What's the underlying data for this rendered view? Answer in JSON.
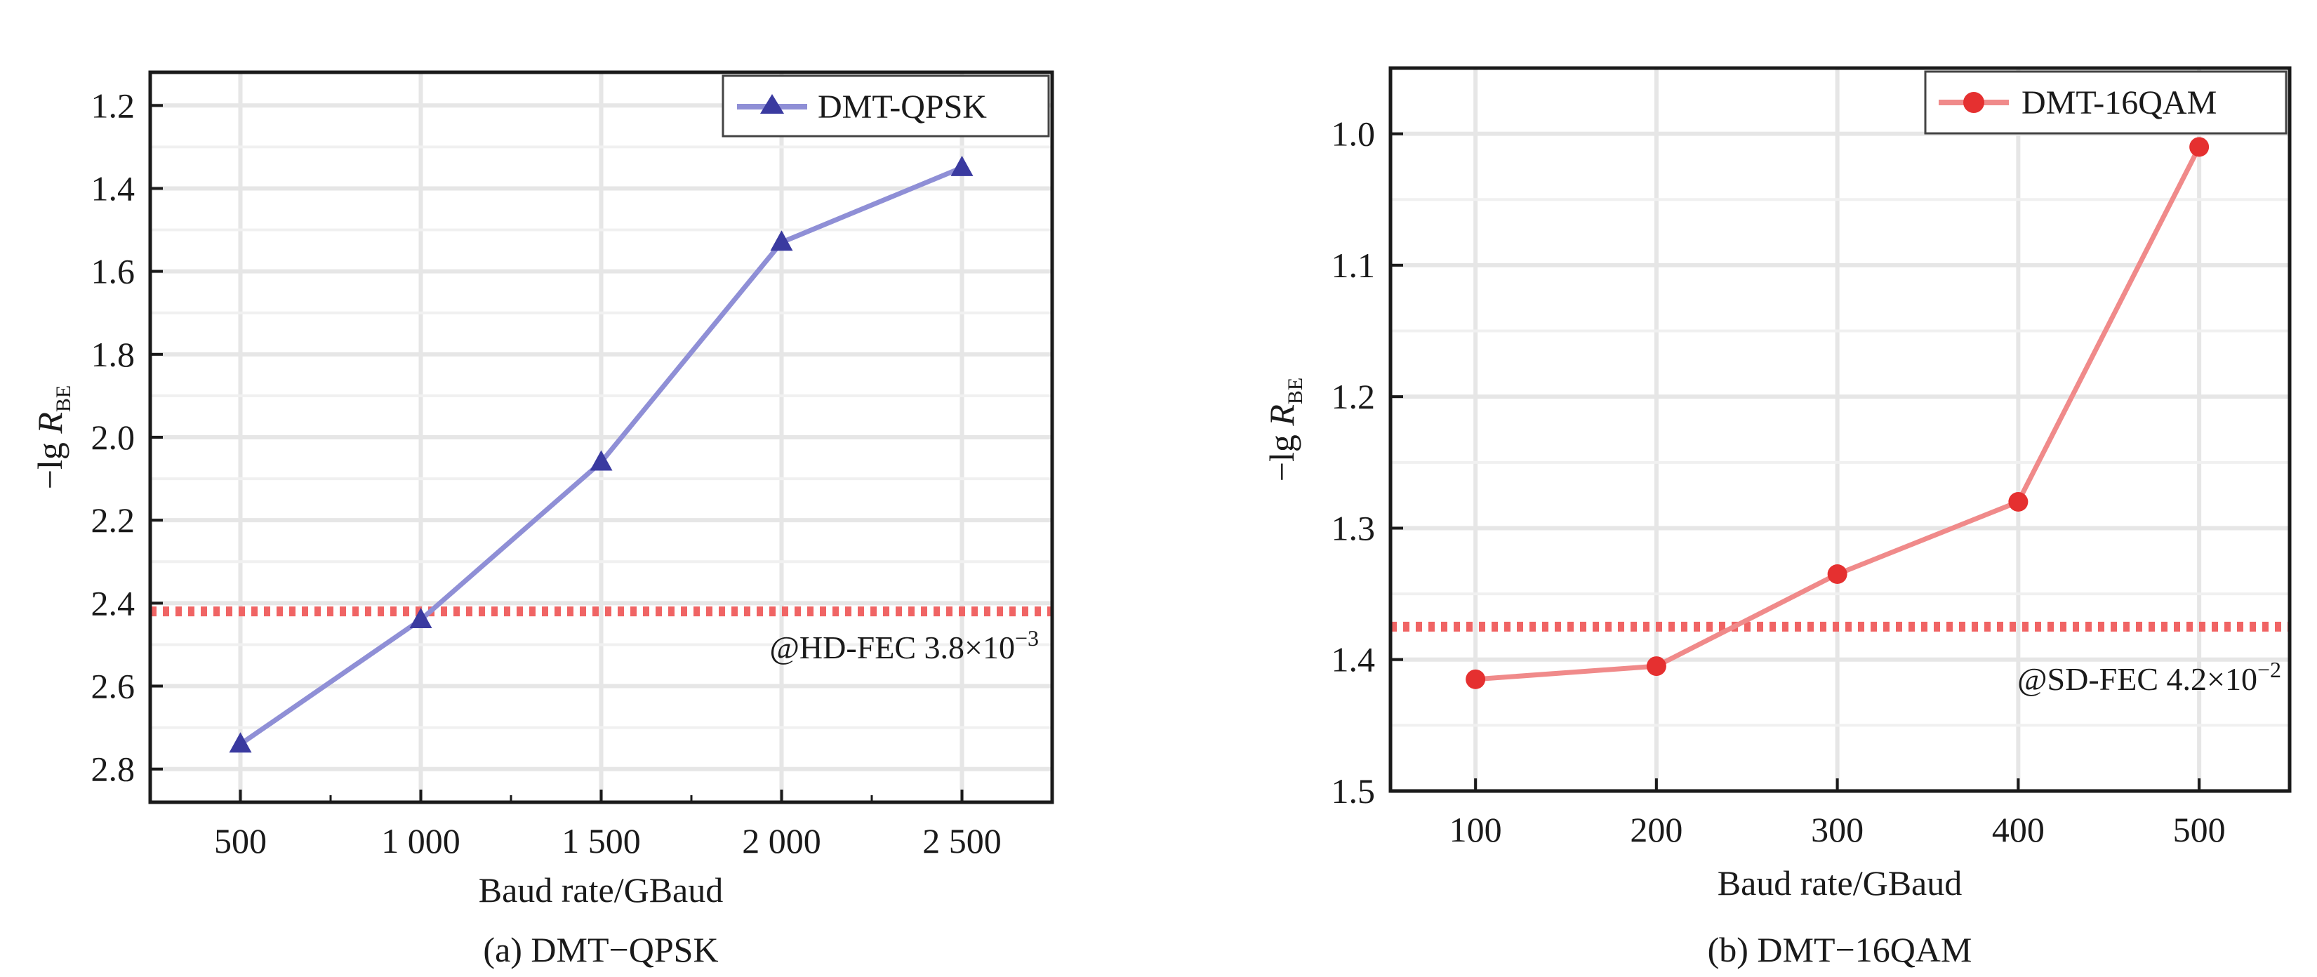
{
  "colors": {
    "panel_a_series": "#3a3aa0",
    "panel_a_line": "#8f8fd6",
    "panel_b_series": "#e53030",
    "panel_b_line": "#f08a8a",
    "threshold": "#f06464",
    "grid": "#e6e6e6",
    "axis": "#1a1a1a"
  },
  "chart_data": [
    {
      "type": "line",
      "caption": "(a) DMT−QPSK",
      "xlabel": "Baud rate/GBaud",
      "ylabel": {
        "prefix": "−lg ",
        "symbol": "R",
        "subscript": "BE"
      },
      "x_tick_labels": [
        "500",
        "1 000",
        "1 500",
        "2 000",
        "2 500"
      ],
      "y_tick_labels": [
        "1.2",
        "1.4",
        "1.6",
        "1.8",
        "2.0",
        "2.2",
        "2.4",
        "2.6",
        "2.8"
      ],
      "xlim": [
        250,
        2750
      ],
      "ylim": [
        1.12,
        2.88
      ],
      "y_inverted": true,
      "grid": true,
      "legend_position": "top-right",
      "series": [
        {
          "name": "DMT-QPSK",
          "marker": "triangle",
          "x": [
            500,
            1000,
            1500,
            2000,
            2500
          ],
          "y": [
            2.74,
            2.44,
            2.06,
            1.53,
            1.35
          ]
        }
      ],
      "threshold": {
        "y": 2.42,
        "style": "dotted",
        "label": "@HD-FEC 3.8×10",
        "label_exponent": "−3"
      }
    },
    {
      "type": "line",
      "caption": "(b) DMT−16QAM",
      "xlabel": "Baud rate/GBaud",
      "ylabel": {
        "prefix": "−lg ",
        "symbol": "R",
        "subscript": "BE"
      },
      "x_tick_labels": [
        "100",
        "200",
        "300",
        "400",
        "500"
      ],
      "y_tick_labels": [
        "1.0",
        "1.1",
        "1.2",
        "1.3",
        "1.4",
        "1.5"
      ],
      "xlim": [
        53,
        550
      ],
      "ylim": [
        0.95,
        1.5
      ],
      "y_inverted": true,
      "grid": true,
      "legend_position": "top-right",
      "series": [
        {
          "name": "DMT-16QAM",
          "marker": "circle",
          "x": [
            100,
            200,
            300,
            400,
            500
          ],
          "y": [
            1.415,
            1.405,
            1.335,
            1.28,
            1.01
          ]
        }
      ],
      "threshold": {
        "y": 1.375,
        "style": "dotted",
        "label": "@SD-FEC 4.2×10",
        "label_exponent": "−2"
      }
    }
  ]
}
